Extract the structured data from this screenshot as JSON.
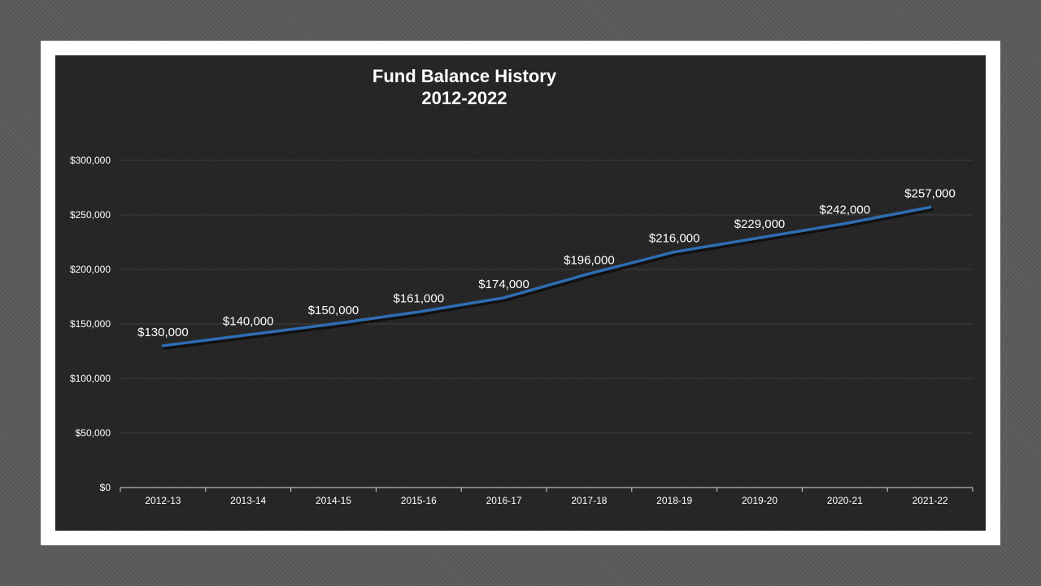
{
  "chart_data": {
    "type": "line",
    "title": "Fund Balance History",
    "subtitle": "2012-2022",
    "categories": [
      "2012-13",
      "2013-14",
      "2014-15",
      "2015-16",
      "2016-17",
      "2017-18",
      "2018-19",
      "2019-20",
      "2020-21",
      "2021-22"
    ],
    "series": [
      {
        "values": [
          130000,
          140000,
          150000,
          161000,
          174000,
          196000,
          216000,
          229000,
          242000,
          257000
        ],
        "color": "#2e6db3"
      }
    ],
    "data_labels": [
      "$130,000",
      "$140,000",
      "$150,000",
      "$161,000",
      "$174,000",
      "$196,000",
      "$216,000",
      "$229,000",
      "$242,000",
      "$257,000"
    ],
    "y_ticks": [
      "$0",
      "$50,000",
      "$100,000",
      "$150,000",
      "$200,000",
      "$250,000",
      "$300,000"
    ],
    "ylim": [
      0,
      300000
    ],
    "xlabel": "",
    "ylabel": "",
    "grid": true,
    "legend": "none"
  },
  "colors": {
    "background": "#5a5a5a",
    "frame": "#ffffff",
    "plot_background": "#252525",
    "gridline": "#3e3e3e",
    "axis": "#d9d9d9",
    "text": "#ffffff"
  }
}
